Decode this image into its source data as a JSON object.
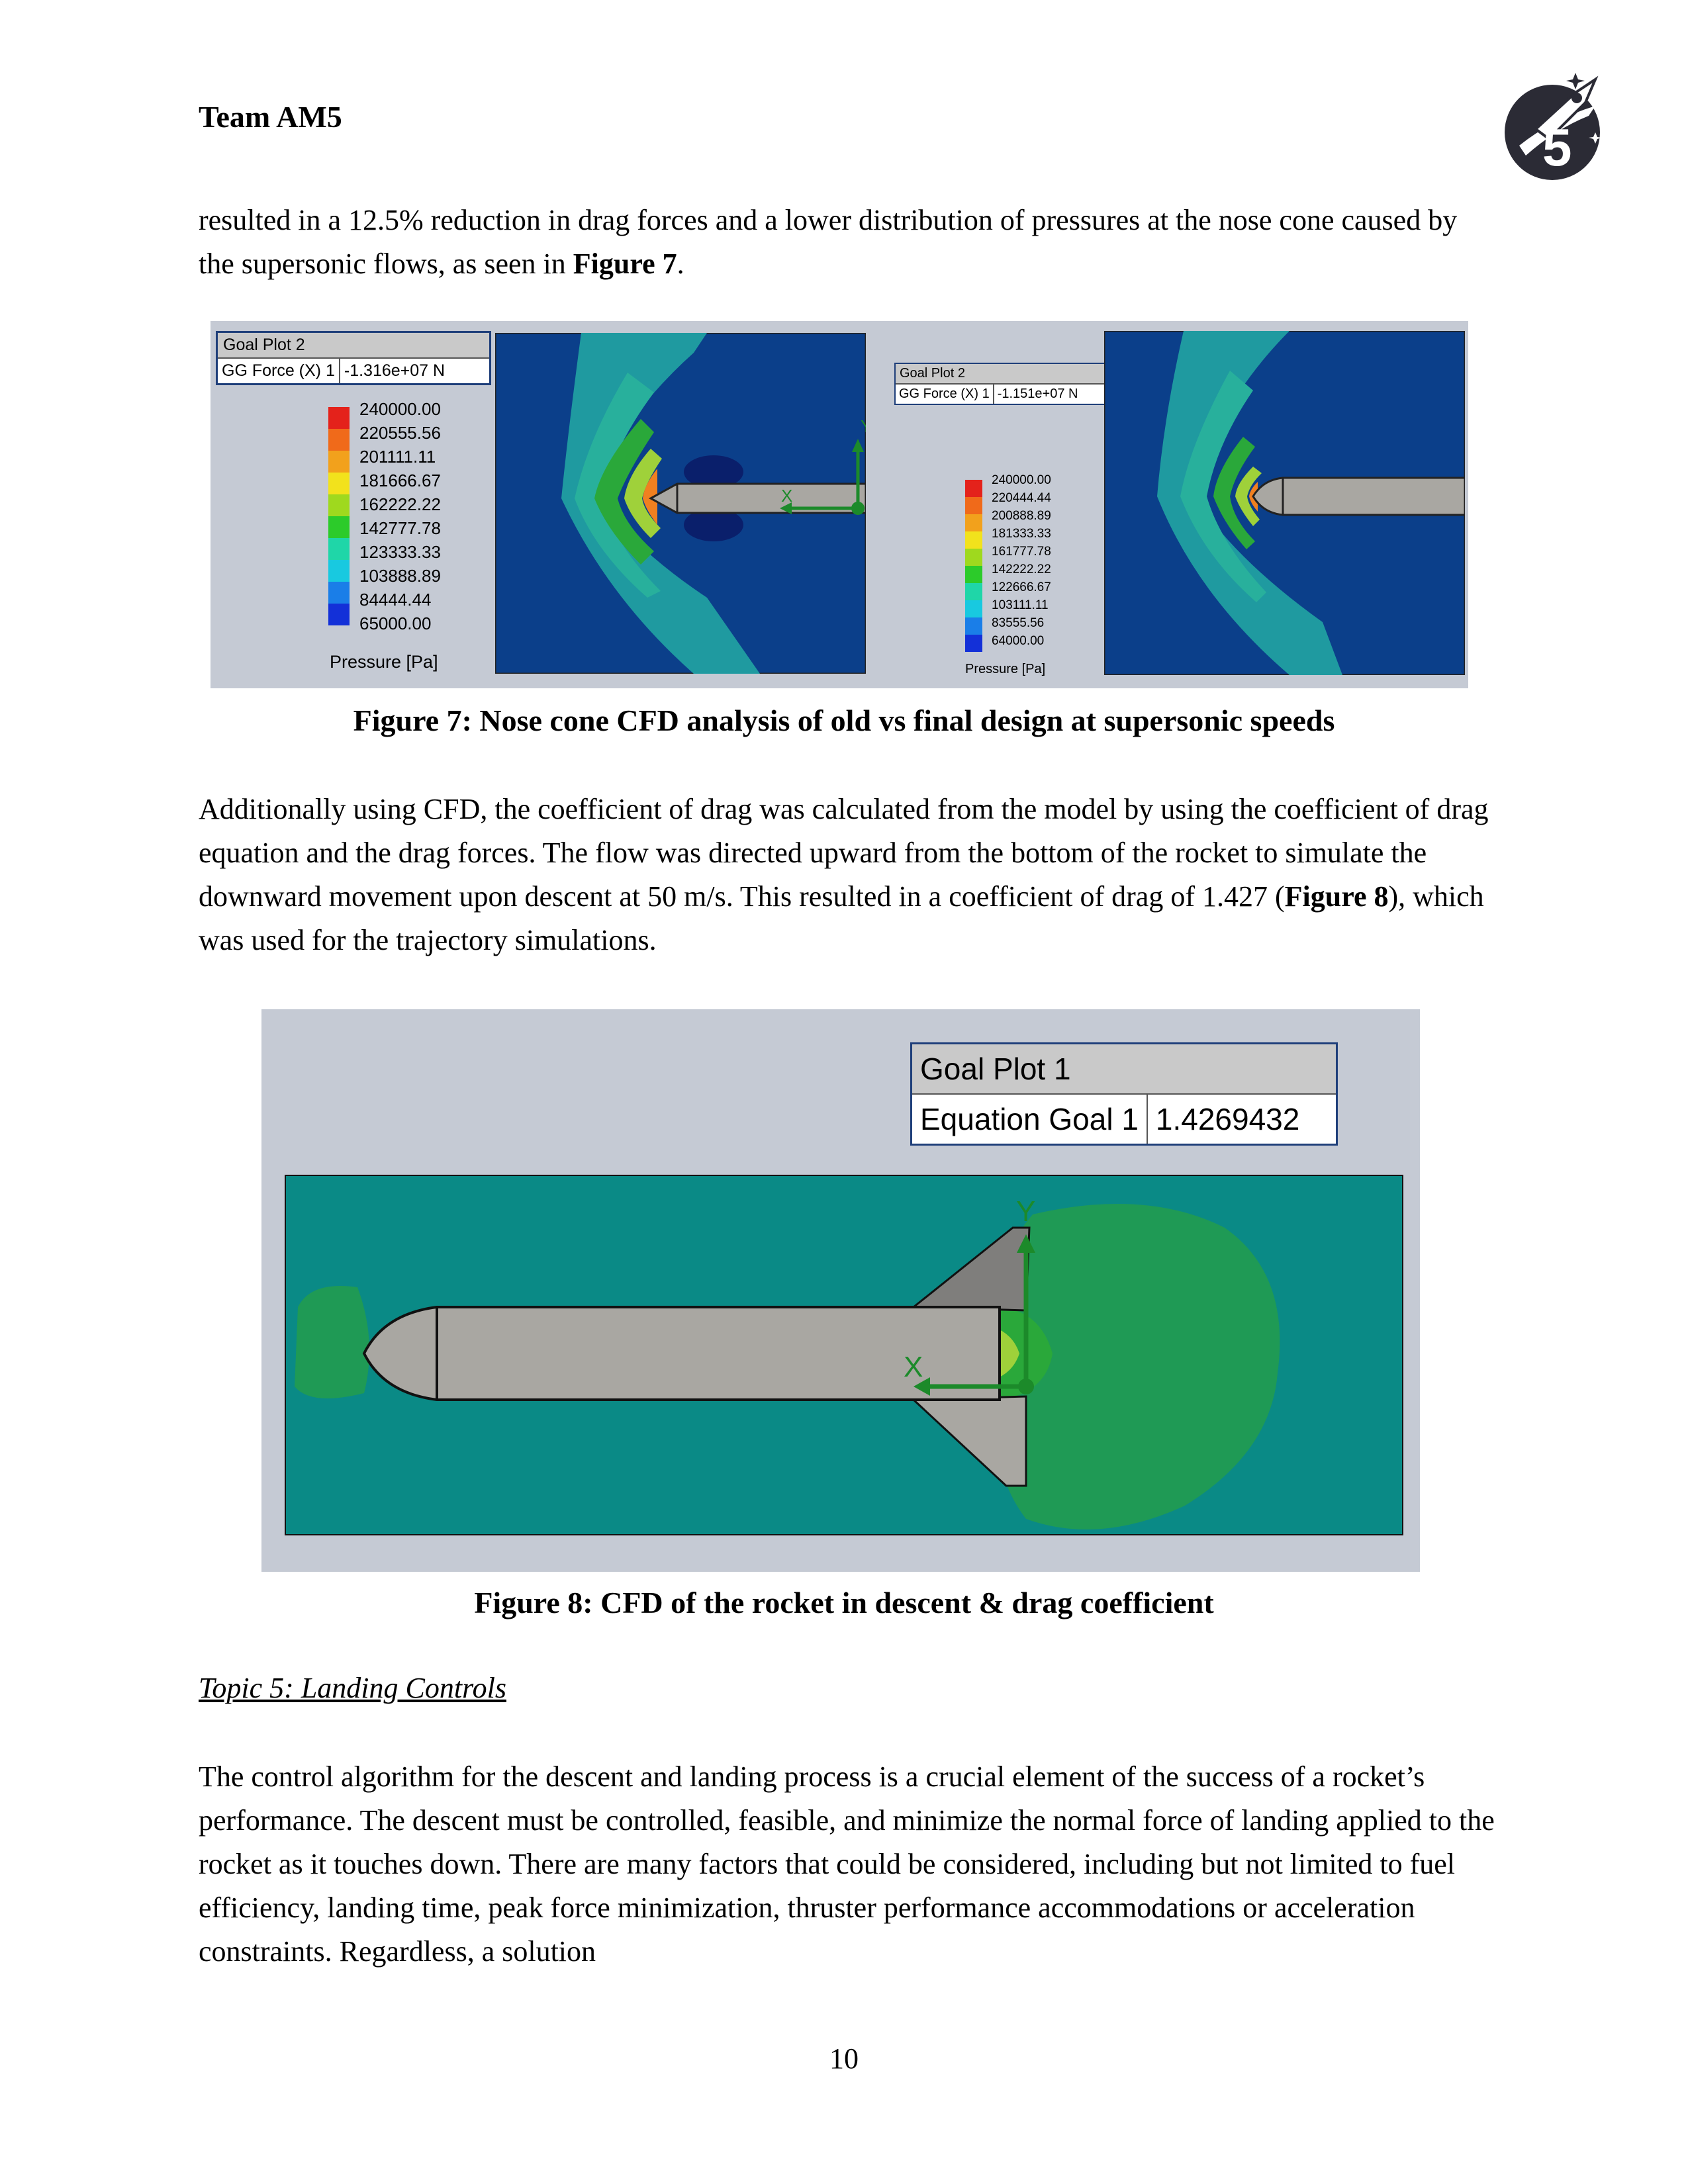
{
  "header": {
    "title": "Team AM5"
  },
  "logo": {
    "icon": "rocket-5-logo-icon"
  },
  "paragraphs": {
    "p1_a": "resulted in a 12.5% reduction in drag forces and a lower distribution of pressures at the nose cone caused by the supersonic flows, as seen in ",
    "p1_ref": "Figure 7",
    "p1_b": ".",
    "p2_a": "Additionally using CFD, the coefficient of drag was calculated from the model by using the coefficient of drag equation and the drag forces. The flow was directed upward from the bottom of the rocket to simulate the downward movement upon descent at 50 m/s. This resulted in a coefficient of drag of 1.427 (",
    "p2_ref": "Figure 8",
    "p2_b": "), which was used for the trajectory simulations.",
    "p3": "The control algorithm for the descent and landing process is a crucial element of the success of a rocket’s performance. The descent must be controlled, feasible, and minimize the normal force of landing applied to the rocket as it touches down. There are many factors that could be considered, including but not limited to fuel efficiency, landing time, peak force minimization, thruster performance accommodations or acceleration constraints. Regardless, a solution"
  },
  "figure7": {
    "caption": "Figure 7: Nose cone CFD analysis of old vs final design at supersonic speeds",
    "left": {
      "goal_title": "Goal Plot 2",
      "goal_name": "GG Force (X) 1",
      "goal_value": "-1.316e+07 N",
      "legend": [
        "240000.00",
        "220555.56",
        "201111.11",
        "181666.67",
        "162222.22",
        "142777.78",
        "123333.33",
        "103888.89",
        "84444.44",
        "65000.00"
      ],
      "legend_title": "Pressure [Pa]",
      "axis_x": "X",
      "axis_y": "Y"
    },
    "right": {
      "goal_title": "Goal Plot 2",
      "goal_name": "GG Force (X) 1",
      "goal_value": "-1.151e+07 N",
      "legend": [
        "240000.00",
        "220444.44",
        "200888.89",
        "181333.33",
        "161777.78",
        "142222.22",
        "122666.67",
        "103111.11",
        "83555.56",
        "64000.00"
      ],
      "legend_title": "Pressure [Pa]"
    },
    "legend_colors": [
      "#e4221b",
      "#f06a1a",
      "#f2a11c",
      "#f2e21c",
      "#9fd91e",
      "#2ccb2a",
      "#1fd6a8",
      "#18c9e0",
      "#1a7ee8",
      "#1330d8"
    ]
  },
  "figure8": {
    "caption": "Figure 8: CFD of the rocket in descent & drag coefficient",
    "goal_title": "Goal Plot 1",
    "goal_name": "Equation Goal 1",
    "goal_value": "1.4269432",
    "axis_x": "X",
    "axis_y": "Y"
  },
  "topic": {
    "label": "Topic 5: Landing Controls"
  },
  "footer": {
    "page_number": "10"
  }
}
